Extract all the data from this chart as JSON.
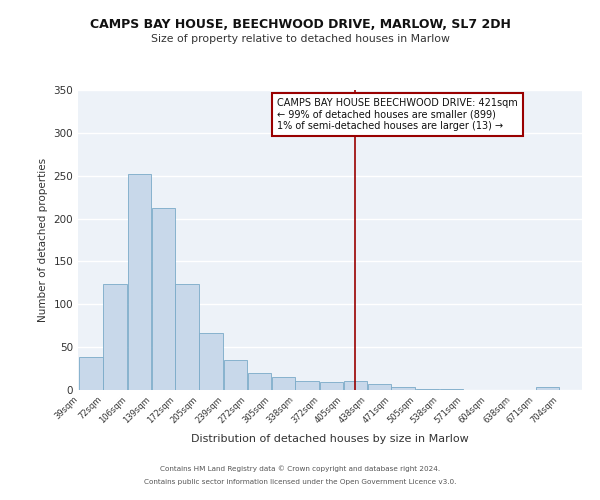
{
  "title": "CAMPS BAY HOUSE, BEECHWOOD DRIVE, MARLOW, SL7 2DH",
  "subtitle": "Size of property relative to detached houses in Marlow",
  "xlabel": "Distribution of detached houses by size in Marlow",
  "ylabel": "Number of detached properties",
  "bar_color": "#c8d8ea",
  "bar_edge_color": "#7aaac8",
  "background_color": "#edf2f8",
  "grid_color": "#ffffff",
  "vline_x": 421,
  "vline_color": "#990000",
  "annotation_title": "CAMPS BAY HOUSE BEECHWOOD DRIVE: 421sqm",
  "annotation_line1": "← 99% of detached houses are smaller (899)",
  "annotation_line2": "1% of semi-detached houses are larger (13) →",
  "annotation_box_color": "#ffffff",
  "annotation_box_edge": "#990000",
  "bins": [
    39,
    72,
    106,
    139,
    172,
    205,
    239,
    272,
    305,
    338,
    372,
    405,
    438,
    471,
    505,
    538,
    571,
    604,
    638,
    671,
    704
  ],
  "counts": [
    38,
    124,
    252,
    212,
    124,
    66,
    35,
    20,
    15,
    10,
    9,
    10,
    7,
    3,
    1,
    1,
    0,
    0,
    0,
    3
  ],
  "ylim": [
    0,
    350
  ],
  "yticks": [
    0,
    50,
    100,
    150,
    200,
    250,
    300,
    350
  ],
  "footer1": "Contains HM Land Registry data © Crown copyright and database right 2024.",
  "footer2": "Contains public sector information licensed under the Open Government Licence v3.0."
}
